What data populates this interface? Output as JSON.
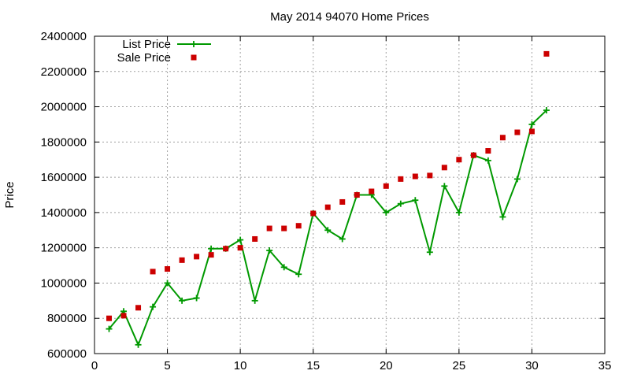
{
  "chart_data": {
    "type": "line",
    "title": "May 2014 94070 Home Prices",
    "xlabel": "",
    "ylabel": "Price",
    "xlim": [
      0,
      35
    ],
    "ylim": [
      600000,
      2400000
    ],
    "x_ticks": [
      0,
      5,
      10,
      15,
      20,
      25,
      30,
      35
    ],
    "y_ticks": [
      600000,
      800000,
      1000000,
      1200000,
      1400000,
      1600000,
      1800000,
      2000000,
      2200000,
      2400000
    ],
    "grid": true,
    "legend_position": "top-left",
    "series": [
      {
        "name": "List Price",
        "style": "line-with-plus-markers",
        "color": "#009900",
        "x": [
          1,
          2,
          3,
          4,
          5,
          6,
          7,
          8,
          9,
          10,
          11,
          12,
          13,
          14,
          15,
          16,
          17,
          18,
          19,
          20,
          21,
          22,
          23,
          24,
          25,
          26,
          27,
          28,
          29,
          30,
          31
        ],
        "values": [
          740000,
          840000,
          650000,
          865000,
          1000000,
          900000,
          915000,
          1195000,
          1195000,
          1245000,
          900000,
          1185000,
          1090000,
          1050000,
          1395000,
          1300000,
          1250000,
          1500000,
          1500000,
          1400000,
          1450000,
          1470000,
          1175000,
          1550000,
          1400000,
          1725000,
          1695000,
          1375000,
          1590000,
          1900000,
          1980000
        ]
      },
      {
        "name": "Sale Price",
        "style": "square-markers",
        "color": "#cc0000",
        "x": [
          1,
          2,
          3,
          4,
          5,
          6,
          7,
          8,
          9,
          10,
          11,
          12,
          13,
          14,
          15,
          16,
          17,
          18,
          19,
          20,
          21,
          22,
          23,
          24,
          25,
          26,
          27,
          28,
          29,
          30,
          31
        ],
        "values": [
          800000,
          815000,
          860000,
          1065000,
          1080000,
          1130000,
          1150000,
          1160000,
          1195000,
          1200000,
          1250000,
          1310000,
          1310000,
          1325000,
          1395000,
          1430000,
          1460000,
          1500000,
          1520000,
          1550000,
          1590000,
          1605000,
          1610000,
          1655000,
          1700000,
          1725000,
          1750000,
          1825000,
          1855000,
          1860000,
          2300000
        ]
      }
    ]
  }
}
